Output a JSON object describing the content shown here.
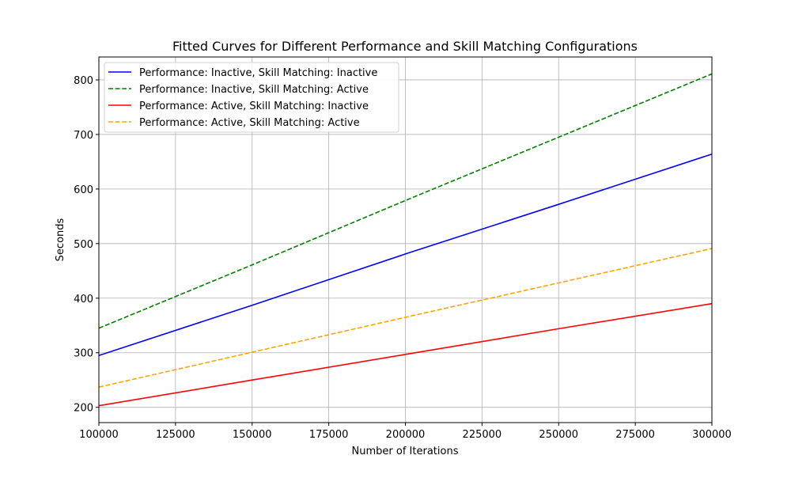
{
  "chart_data": {
    "type": "line",
    "title": "Fitted Curves for Different Performance and Skill Matching Configurations",
    "xlabel": "Number of Iterations",
    "ylabel": "Seconds",
    "xlim": [
      100000,
      300000
    ],
    "ylim": [
      172,
      842
    ],
    "grid": true,
    "legend_position": "top-left",
    "xticks": [
      100000,
      125000,
      150000,
      175000,
      200000,
      225000,
      250000,
      275000,
      300000
    ],
    "yticks": [
      200,
      300,
      400,
      500,
      600,
      700,
      800
    ],
    "x": [
      100000,
      150000,
      200000,
      250000,
      300000
    ],
    "series": [
      {
        "name": "Performance: Inactive, Skill Matching: Inactive",
        "color": "#0000ff",
        "dash": "solid",
        "values": [
          295,
          387,
          481,
          572,
          664
        ]
      },
      {
        "name": "Performance: Inactive, Skill Matching: Active",
        "color": "#008000",
        "dash": "dashed",
        "values": [
          345,
          461,
          579,
          695,
          811
        ]
      },
      {
        "name": "Performance: Active, Skill Matching: Inactive",
        "color": "#ff0000",
        "dash": "solid",
        "values": [
          203,
          250,
          297,
          344,
          390
        ]
      },
      {
        "name": "Performance: Active, Skill Matching: Active",
        "color": "#ffa500",
        "dash": "dashed",
        "values": [
          237,
          301,
          365,
          428,
          491
        ]
      }
    ]
  }
}
